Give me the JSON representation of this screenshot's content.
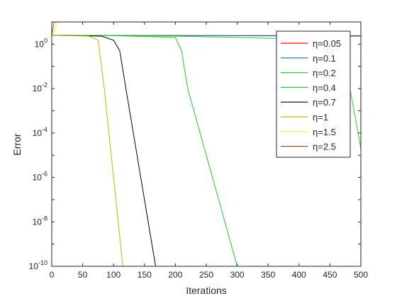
{
  "chart_data": {
    "type": "line",
    "title": "",
    "xlabel": "Iterations",
    "ylabel": "Error",
    "xlim": [
      0,
      500
    ],
    "ylim": [
      1e-10,
      10
    ],
    "yscale": "log",
    "grid": false,
    "legend_position": "top-right",
    "x_ticks": [
      "0",
      "50",
      "100",
      "150",
      "200",
      "250",
      "300",
      "350",
      "400",
      "450",
      "500"
    ],
    "y_ticks": [
      {
        "base": "10",
        "exp": "-10"
      },
      {
        "base": "10",
        "exp": "-8"
      },
      {
        "base": "10",
        "exp": "-6"
      },
      {
        "base": "10",
        "exp": "-4"
      },
      {
        "base": "10",
        "exp": "-2"
      },
      {
        "base": "10",
        "exp": "0"
      }
    ],
    "series": [
      {
        "name": "η=0.05",
        "color": "#ff0000",
        "x": [
          0,
          250,
          500
        ],
        "y": [
          2.5,
          2.45,
          2.4
        ]
      },
      {
        "name": "η=0.1",
        "color": "#0072bd",
        "x": [
          0,
          250,
          500
        ],
        "y": [
          2.5,
          2.4,
          2.3
        ]
      },
      {
        "name": "η=0.2",
        "color": "#33cc33",
        "x": [
          0,
          100,
          200,
          300,
          400,
          470,
          500
        ],
        "y": [
          2.5,
          2.4,
          2.3,
          2.0,
          1.7,
          0.8,
          2e-05
        ]
      },
      {
        "name": "η=0.4",
        "color": "#22cc22",
        "x": [
          0,
          100,
          200,
          210,
          220,
          300
        ],
        "y": [
          2.5,
          2.4,
          2.0,
          0.5,
          0.01,
          1e-10
        ]
      },
      {
        "name": "η=0.7",
        "color": "#000000",
        "x": [
          0,
          80,
          100,
          110,
          120,
          168
        ],
        "y": [
          2.5,
          2.3,
          1.5,
          0.5,
          0.01,
          1e-10
        ]
      },
      {
        "name": "η=1",
        "color": "#c8b400",
        "x": [
          0,
          60,
          75,
          85,
          115
        ],
        "y": [
          2.5,
          2.3,
          1.5,
          0.01,
          1e-10
        ]
      },
      {
        "name": "η=1.5",
        "color": "#ffee22",
        "x": [
          0,
          5,
          8,
          10
        ],
        "y": [
          2.5,
          4,
          8,
          10
        ]
      },
      {
        "name": "η=2.5",
        "color": "#a0522d",
        "x": [
          0,
          2,
          4
        ],
        "y": [
          2.5,
          5,
          10
        ]
      }
    ]
  }
}
